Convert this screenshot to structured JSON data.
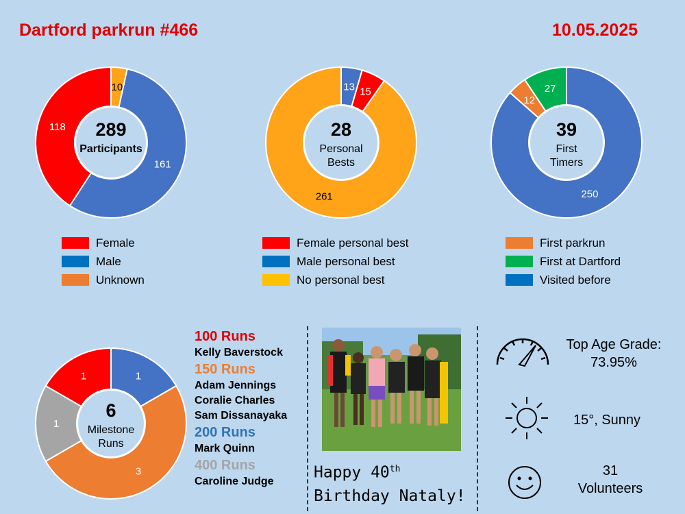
{
  "header": {
    "title": "Dartford parkrun #466",
    "date": "10.05.2025"
  },
  "colors": {
    "red": "#ff0000",
    "blue": "#4472c4",
    "orange": "#ffa319",
    "dark_orange": "#ed7d31",
    "green": "#00b050",
    "grey": "#a5a5a5",
    "yellow": "#ffc000",
    "legend_blue": "#0070c0",
    "legend_orange": "#ed7d31"
  },
  "chart_data": [
    {
      "type": "pie",
      "center_value": "289",
      "center_label": "Participants",
      "slices": [
        {
          "label": "Female",
          "value": 118
        },
        {
          "label": "Male",
          "value": 161
        },
        {
          "label": "Unknown",
          "value": 10
        }
      ]
    },
    {
      "type": "pie",
      "center_value": "28",
      "center_label": "Personal Bests",
      "slices": [
        {
          "label": "Female personal best",
          "value": 15
        },
        {
          "label": "Male personal best",
          "value": 13
        },
        {
          "label": "No personal best",
          "value": 261
        }
      ]
    },
    {
      "type": "pie",
      "center_value": "39",
      "center_label": "First Timers",
      "slices": [
        {
          "label": "First parkrun",
          "value": 12
        },
        {
          "label": "First at Dartford",
          "value": 27
        },
        {
          "label": "Visited before",
          "value": 250
        }
      ]
    },
    {
      "type": "pie",
      "center_value": "6",
      "center_label": "Milestone Runs",
      "slices": [
        {
          "label": "100 Runs",
          "value": 1
        },
        {
          "label": "150 Runs",
          "value": 3
        },
        {
          "label": "200 Runs",
          "value": 1
        },
        {
          "label": "400 Runs",
          "value": 1
        }
      ]
    }
  ],
  "legends": {
    "participants": [
      {
        "label": "Female",
        "color": "#ff0000"
      },
      {
        "label": "Male",
        "color": "#0070c0"
      },
      {
        "label": "Unknown",
        "color": "#ed7d31"
      }
    ],
    "pbs": [
      {
        "label": "Female personal best",
        "color": "#ff0000"
      },
      {
        "label": "Male personal best",
        "color": "#0070c0"
      },
      {
        "label": "No personal best",
        "color": "#ffc000"
      }
    ],
    "first_timers": [
      {
        "label": "First parkrun",
        "color": "#ed7d31"
      },
      {
        "label": "First at Dartford",
        "color": "#00b050"
      },
      {
        "label": "Visited before",
        "color": "#0070c0"
      }
    ]
  },
  "milestones": [
    {
      "heading": "100 Runs",
      "color": "#e00000",
      "names": [
        "Kelly Baverstock"
      ]
    },
    {
      "heading": "150 Runs",
      "color": "#ed7d31",
      "names": [
        "Adam Jennings",
        "Coralie Charles",
        "Sam Dissanayaka"
      ]
    },
    {
      "heading": "200 Runs",
      "color": "#2e75b6",
      "names": [
        "Mark Quinn"
      ]
    },
    {
      "heading": "400 Runs",
      "color": "#a5a5a5",
      "names": [
        "Caroline Judge"
      ]
    }
  ],
  "photo": {
    "caption_line1": "Happy 40",
    "caption_sup": "th",
    "caption_line2": "Birthday Nataly!"
  },
  "stats": {
    "age_grade": {
      "icon": "speedometer-icon",
      "label": "Top Age Grade:",
      "value": "73.95%"
    },
    "weather": {
      "icon": "sun-icon",
      "text": "15°, Sunny"
    },
    "volunteers": {
      "icon": "smiley-icon",
      "count": "31",
      "label": "Volunteers"
    }
  }
}
